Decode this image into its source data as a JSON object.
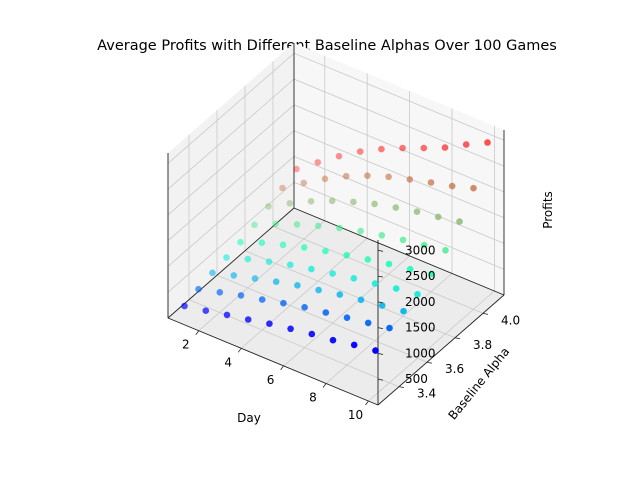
{
  "chart_data": {
    "type": "scatter3d",
    "title": "Average Profits with Different Baseline Alphas Over 100 Games",
    "xlabel": "Day",
    "ylabel": "Baseline Alpha",
    "zlabel": "Profits",
    "xlim": [
      0.55,
      10.45
    ],
    "ylim": [
      3.25,
      4.15
    ],
    "zlim": [
      0,
      3200
    ],
    "xticks": [
      "2",
      "4",
      "6",
      "8",
      "10"
    ],
    "yticks": [
      "3.4",
      "3.6",
      "3.8",
      "4.0"
    ],
    "zticks": [
      "500",
      "1000",
      "1500",
      "2000",
      "2500",
      "3000"
    ],
    "grid": true,
    "colormap": "rainbow",
    "color_by": "Baseline Alpha",
    "alphas": [
      3.3,
      3.4,
      3.5,
      3.6,
      3.7,
      3.8,
      3.9,
      4.0,
      4.1
    ],
    "days": [
      1,
      2,
      3,
      4,
      5,
      6,
      7,
      8,
      9,
      10
    ],
    "profits": [
      [
        190,
        270,
        360,
        440,
        530,
        600,
        670,
        720,
        800,
        860
      ],
      [
        280,
        390,
        500,
        590,
        690,
        780,
        850,
        920,
        990,
        1060
      ],
      [
        360,
        480,
        590,
        700,
        800,
        880,
        960,
        1030,
        1090,
        1150
      ],
      [
        420,
        560,
        680,
        790,
        880,
        960,
        1040,
        1110,
        1180,
        1240
      ],
      [
        480,
        640,
        770,
        890,
        990,
        1080,
        1170,
        1250,
        1320,
        1400
      ],
      [
        580,
        770,
        930,
        1070,
        1200,
        1310,
        1400,
        1480,
        1550,
        1620
      ],
      [
        700,
        930,
        1140,
        1320,
        1470,
        1600,
        1700,
        1790,
        1860,
        1940
      ],
      [
        820,
        1090,
        1340,
        1560,
        1740,
        1890,
        2010,
        2120,
        2220,
        2350
      ],
      [
        950,
        1250,
        1540,
        1800,
        2020,
        2210,
        2380,
        2560,
        2790,
        3000
      ]
    ]
  }
}
